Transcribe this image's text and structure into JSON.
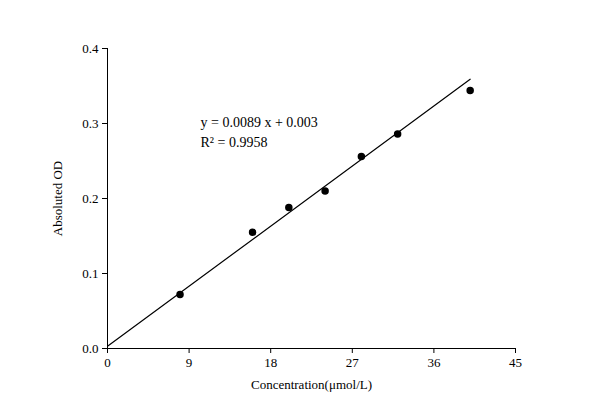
{
  "chart_data": {
    "type": "scatter",
    "x_label": "Concentration(μmol/L)",
    "y_label": "Absoluted OD",
    "xlim": [
      0,
      45
    ],
    "xticks": [
      0,
      9,
      18,
      27,
      36,
      45
    ],
    "ylim": [
      0,
      0.4
    ],
    "yticks": [
      {
        "value": 0,
        "label": "0.0"
      },
      0.1,
      0.2,
      0.3,
      0.4
    ],
    "grid": false,
    "annotations": [
      "y = 0.0089 x + 0.003",
      "R² = 0.9958"
    ],
    "series": [
      {
        "type": "scatter",
        "color": "#000000",
        "marker": "circle",
        "x": [
          8,
          16,
          20,
          24,
          28,
          32,
          40
        ],
        "values": [
          0.072,
          0.155,
          0.188,
          0.21,
          0.256,
          0.286,
          0.344
        ]
      },
      {
        "type": "line",
        "color": "#000000",
        "line_style": "solid",
        "x": [
          0,
          40
        ],
        "values": [
          0.003,
          0.359
        ]
      }
    ]
  }
}
